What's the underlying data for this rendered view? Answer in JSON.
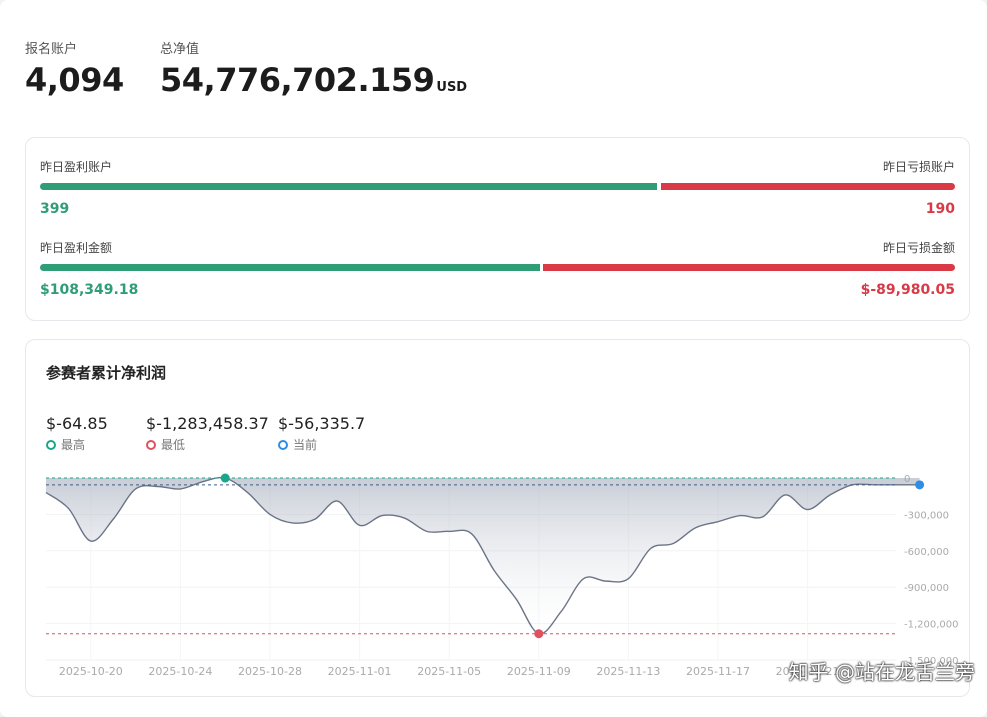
{
  "summary": {
    "registered_label": "报名账户",
    "registered_value": "4,094",
    "nav_label": "总净值",
    "nav_value": "54,776,702.159",
    "nav_unit": "USD"
  },
  "yesterday": {
    "profit_accounts_label": "昨日盈利账户",
    "loss_accounts_label": "昨日亏损账户",
    "profit_accounts_value": "399",
    "loss_accounts_value": "190",
    "profit_amount_label": "昨日盈利金额",
    "loss_amount_label": "昨日亏损金额",
    "profit_amount_value": "$108,349.18",
    "loss_amount_value": "$-89,980.05",
    "profit_color": "#2f9e76",
    "loss_color": "#d93a46"
  },
  "pnl_card": {
    "title": "参赛者累计净利润",
    "stats": [
      {
        "value": "$-64.85",
        "label": "最高",
        "color": "#1aa68a"
      },
      {
        "value": "$-1,283,458.37",
        "label": "最低",
        "color": "#e0505e"
      },
      {
        "value": "$-56,335.7",
        "label": "当前",
        "color": "#2e8de6"
      }
    ]
  },
  "chart_data": {
    "type": "area",
    "title": "参赛者累计净利润",
    "xlabel": "",
    "ylabel": "",
    "x_ticks": [
      "2025-10-20",
      "2025-10-24",
      "2025-10-28",
      "2025-11-01",
      "2025-11-05",
      "2025-11-09",
      "2025-11-13",
      "2025-11-17",
      "2025-11-21"
    ],
    "y_ticks": [
      "0",
      "-300,000",
      "-600,000",
      "-900,000",
      "-1,200,000",
      "-1,500,000"
    ],
    "ylim": [
      -1500000,
      0
    ],
    "x_start": "2025-10-18",
    "max_value": -64.85,
    "min_value": -1283458.37,
    "current_value": -56335.7,
    "series": [
      {
        "x": [
          "2025-10-18",
          "2025-10-19",
          "2025-10-20",
          "2025-10-21",
          "2025-10-22",
          "2025-10-23",
          "2025-10-24",
          "2025-10-25",
          "2025-10-26",
          "2025-10-27",
          "2025-10-28",
          "2025-10-29",
          "2025-10-30",
          "2025-10-31",
          "2025-11-01",
          "2025-11-02",
          "2025-11-03",
          "2025-11-04",
          "2025-11-05",
          "2025-11-06",
          "2025-11-07",
          "2025-11-08",
          "2025-11-09",
          "2025-11-10",
          "2025-11-11",
          "2025-11-12",
          "2025-11-13",
          "2025-11-14",
          "2025-11-15",
          "2025-11-16",
          "2025-11-17",
          "2025-11-18",
          "2025-11-19",
          "2025-11-20",
          "2025-11-21",
          "2025-11-22",
          "2025-11-23",
          "2025-11-24",
          "2025-11-25",
          "2025-11-26"
        ],
        "values": [
          -120000,
          -250000,
          -520000,
          -340000,
          -90000,
          -70000,
          -90000,
          -30000,
          -64.85,
          -120000,
          -300000,
          -370000,
          -340000,
          -190000,
          -390000,
          -310000,
          -330000,
          -440000,
          -440000,
          -460000,
          -760000,
          -1000000,
          -1283458.37,
          -1100000,
          -830000,
          -850000,
          -830000,
          -580000,
          -540000,
          -410000,
          -360000,
          -310000,
          -320000,
          -140000,
          -260000,
          -140000,
          -56335.7,
          -56335.7,
          -56335.7,
          -56335.7
        ]
      }
    ],
    "grid": true,
    "colors": {
      "line": "#6b7487",
      "max": "#1aa68a",
      "min": "#e0505e",
      "current": "#2e8de6"
    }
  },
  "watermark": "知乎 @站在龙舌兰旁"
}
